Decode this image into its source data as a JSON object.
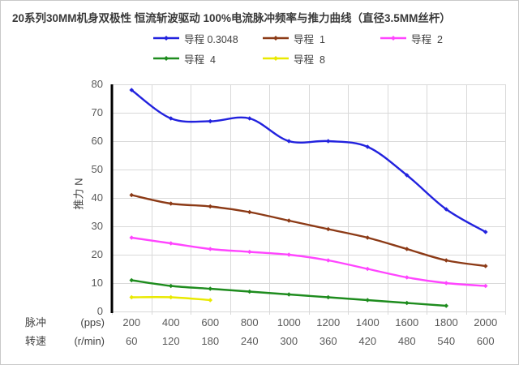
{
  "title": "20系列30MM机身双极性 恒流斩波驱动 100%电流脉冲频率与推力曲线（直径3.5MM丝杆）",
  "colors": {
    "background": "#FFFFFF",
    "grid": "#D9D9D9",
    "axis": "#000000",
    "tick_text": "#595959",
    "label_text": "#404040",
    "title_text": "#3A3A3A",
    "frame_border": "#C9C9C9"
  },
  "y_axis": {
    "title": "推力 N",
    "ticks": [
      0,
      10,
      20,
      30,
      40,
      50,
      60,
      70,
      80
    ]
  },
  "x_axis": {
    "row1_label": "脉冲",
    "row1_unit": "(pps)",
    "row2_label": "转速",
    "row2_unit": "(r/min)"
  },
  "legend_layout": [
    [
      0,
      1,
      2
    ],
    [
      3,
      4
    ]
  ],
  "chart_data": {
    "type": "line",
    "smoothed": true,
    "grid": true,
    "legend_position": "top",
    "title": "20系列30MM机身双极性 恒流斩波驱动 100%电流脉冲频率与推力曲线（直径3.5MM丝杆）",
    "ylabel": "推力 N",
    "xlabel": "脉冲 (pps) / 转速 (r/min)",
    "ylim": [
      0,
      80
    ],
    "ytick_step": 10,
    "categories_pps": [
      200,
      400,
      600,
      800,
      1000,
      1200,
      1400,
      1600,
      1800,
      2000
    ],
    "categories_rpm": [
      60,
      120,
      180,
      240,
      300,
      360,
      420,
      480,
      540,
      600
    ],
    "series": [
      {
        "name": "导程 0.3048",
        "color": "#2222DE",
        "values": [
          78,
          68,
          67,
          68,
          60,
          60,
          58,
          48,
          36,
          28
        ]
      },
      {
        "name": "导程  1",
        "color": "#8C3A16",
        "values": [
          41,
          38,
          37,
          35,
          32,
          29,
          26,
          22,
          18,
          16
        ]
      },
      {
        "name": "导程  2",
        "color": "#FF45FF",
        "values": [
          26,
          24,
          22,
          21,
          20,
          18,
          15,
          12,
          10,
          9
        ]
      },
      {
        "name": "导程  4",
        "color": "#1E8C1E",
        "values": [
          11,
          9,
          8,
          7,
          6,
          5,
          4,
          3,
          2
        ]
      },
      {
        "name": "导程  8",
        "color": "#E9E900",
        "values": [
          5,
          5,
          4
        ]
      }
    ]
  }
}
